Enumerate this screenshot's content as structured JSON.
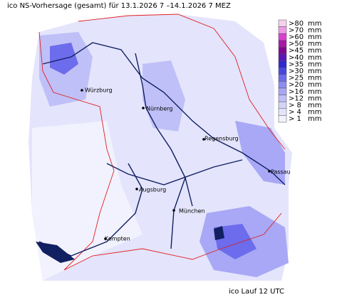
{
  "title": "ico NS-Vorhersage (gesamt) für 13.1.2026 7 –14.1.2026 7 MEZ",
  "legend": [
    {
      "label": ">80",
      "unit": "mm",
      "color": "#f6d0ee"
    },
    {
      "label": ">70",
      "unit": "mm",
      "color": "#ec9ce4"
    },
    {
      "label": ">60",
      "unit": "mm",
      "color": "#d840d0"
    },
    {
      "label": ">50",
      "unit": "mm",
      "color": "#a818a8"
    },
    {
      "label": ">45",
      "unit": "mm",
      "color": "#800890"
    },
    {
      "label": ">40",
      "unit": "mm",
      "color": "#5818b8"
    },
    {
      "label": ">35",
      "unit": "mm",
      "color": "#3028d0"
    },
    {
      "label": ">30",
      "unit": "mm",
      "color": "#4848e0"
    },
    {
      "label": ">25",
      "unit": "mm",
      "color": "#6c6cec"
    },
    {
      "label": ">20",
      "unit": "mm",
      "color": "#8c8cf2"
    },
    {
      "label": ">16",
      "unit": "mm",
      "color": "#a8a8f6"
    },
    {
      "label": ">12",
      "unit": "mm",
      "color": "#c0c0f8"
    },
    {
      "label": "> 8",
      "unit": "mm",
      "color": "#d4d4fa"
    },
    {
      "label": "> 4",
      "unit": "mm",
      "color": "#e4e4fc"
    },
    {
      "label": "> 1",
      "unit": "mm",
      "color": "#f2f2fe"
    }
  ],
  "cities": [
    "Würzburg",
    "Nürnberg",
    "Regensburg",
    "Passau",
    "Augsburg",
    "München",
    "Kempten"
  ],
  "footer": "ico Lauf 12 UTC"
}
